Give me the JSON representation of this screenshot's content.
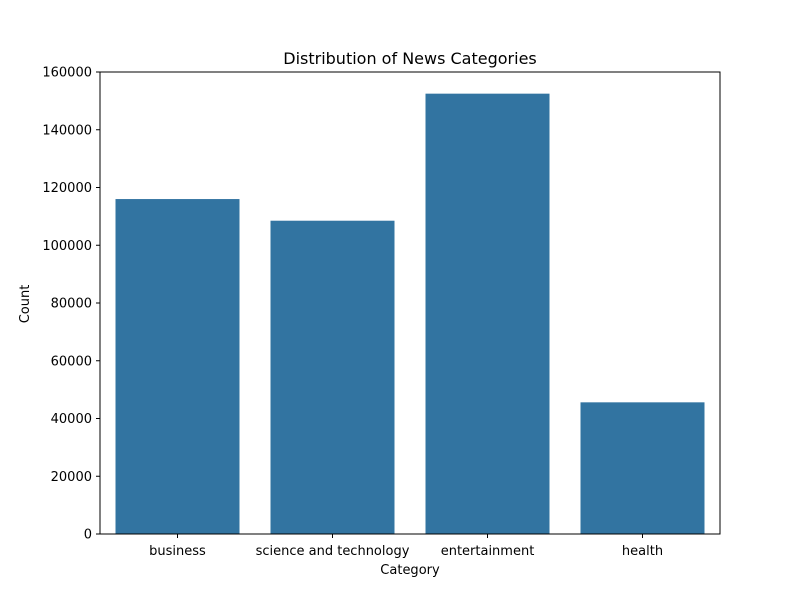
{
  "chart_data": {
    "type": "bar",
    "title": "Distribution of News Categories",
    "xlabel": "Category",
    "ylabel": "Count",
    "categories": [
      "business",
      "science and technology",
      "entertainment",
      "health"
    ],
    "values": [
      116000,
      108500,
      152500,
      45600
    ],
    "ylim": [
      0,
      160000
    ],
    "yticks": [
      0,
      20000,
      40000,
      60000,
      80000,
      100000,
      120000,
      140000,
      160000
    ],
    "ytick_labels": [
      "0",
      "20000",
      "40000",
      "60000",
      "80000",
      "100000",
      "120000",
      "140000",
      "160000"
    ],
    "grid": false,
    "bar_color": "#3274a1"
  }
}
